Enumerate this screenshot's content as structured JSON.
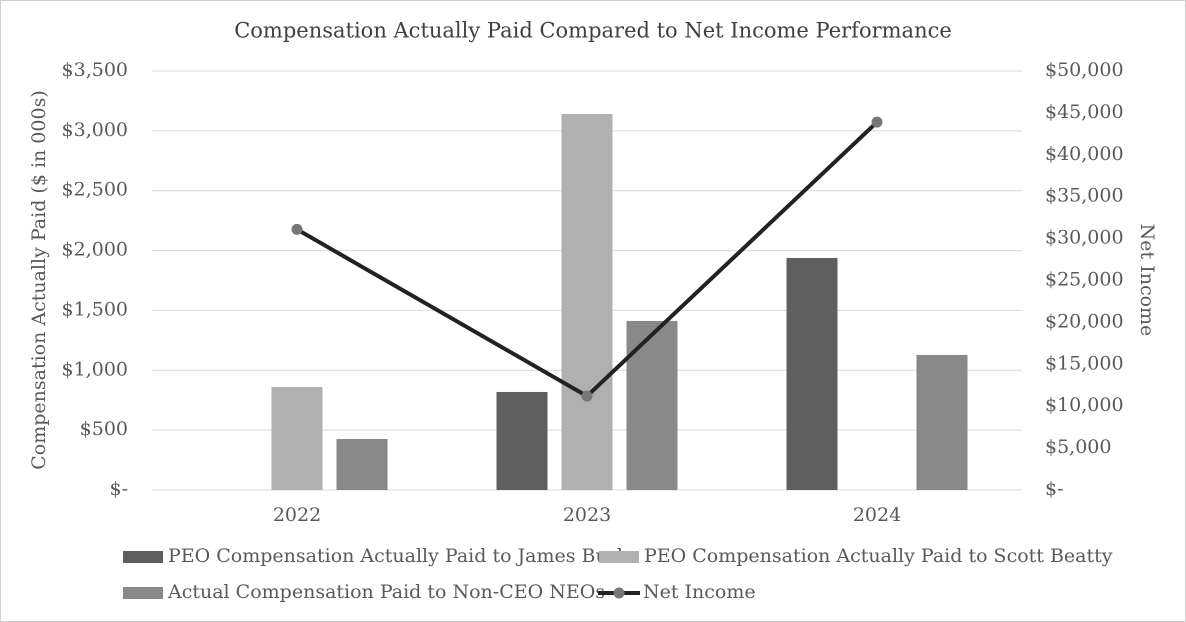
{
  "chart_data": {
    "type": "bar",
    "title": "Compensation Actually Paid Compared  to Net Income Performance",
    "y_label": "Compensation Actually Paid ($ in 000s)",
    "y2_label": "Net Income",
    "categories": [
      "2022",
      "2023",
      "2024"
    ],
    "series": [
      {
        "name": "PEO Compensation Actually Paid to James Burke",
        "color": "#5f5f5f",
        "type": "bar",
        "values": [
          null,
          819,
          1938
        ]
      },
      {
        "name": "PEO Compensation Actually Paid to Scott Beatty",
        "color": "#b0b0b0",
        "type": "bar",
        "values": [
          860,
          3141,
          null
        ]
      },
      {
        "name": "Actual Compensation Paid to Non-CEO NEOs",
        "color": "#898989",
        "type": "bar",
        "values": [
          426,
          1412,
          1128
        ]
      },
      {
        "name": "Net Income",
        "color": "#222222",
        "marker_color": "#777777",
        "type": "line",
        "axis": "y2",
        "values": [
          31100,
          11200,
          43900
        ]
      }
    ],
    "ylim": [
      0,
      3500
    ],
    "yticks": [
      {
        "value": 0,
        "label": "$-"
      },
      {
        "value": 500,
        "label": "$500"
      },
      {
        "value": 1000,
        "label": "$1,000"
      },
      {
        "value": 1500,
        "label": "$1,500"
      },
      {
        "value": 2000,
        "label": "$2,000"
      },
      {
        "value": 2500,
        "label": "$2,500"
      },
      {
        "value": 3000,
        "label": "$3,000"
      },
      {
        "value": 3500,
        "label": "$3,500"
      }
    ],
    "y2lim": [
      0,
      50000
    ],
    "y2ticks": [
      {
        "value": 0,
        "label": "$-"
      },
      {
        "value": 5000,
        "label": "$5,000"
      },
      {
        "value": 10000,
        "label": "$10,000"
      },
      {
        "value": 15000,
        "label": "$15,000"
      },
      {
        "value": 20000,
        "label": "$20,000"
      },
      {
        "value": 25000,
        "label": "$25,000"
      },
      {
        "value": 30000,
        "label": "$30,000"
      },
      {
        "value": 35000,
        "label": "$35,000"
      },
      {
        "value": 40000,
        "label": "$40,000"
      },
      {
        "value": 45000,
        "label": "$45,000"
      },
      {
        "value": 50000,
        "label": "$50,000"
      }
    ],
    "grid": true,
    "legend": "bottom"
  }
}
